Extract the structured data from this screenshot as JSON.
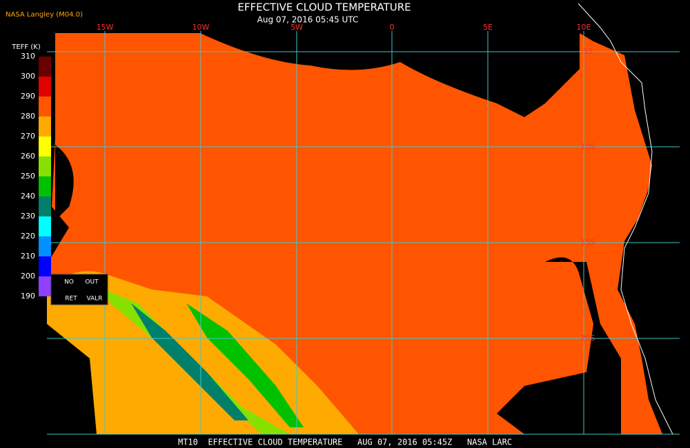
{
  "header": {
    "title": "EFFECTIVE CLOUD TEMPERATURE",
    "subtitle": "Aug 07, 2016 05:45 UTC",
    "source": "NASA Langley (M04.0)"
  },
  "grid": {
    "longitudes": [
      "15W",
      "10W",
      "5W",
      "0",
      "5E",
      "10E"
    ],
    "latitudes": [
      "5S",
      "10S",
      "15S",
      "20S"
    ]
  },
  "colorbar": {
    "label": "TEFF (K)",
    "ticks": [
      310,
      300,
      290,
      280,
      270,
      260,
      250,
      240,
      230,
      220,
      210,
      200,
      190
    ],
    "colors": [
      "#6b0000",
      "#e00000",
      "#ff5500",
      "#ffaa00",
      "#ffff00",
      "#88e000",
      "#00c000",
      "#00806a",
      "#00ffff",
      "#0090ff",
      "#0000ff",
      "#9040ff"
    ],
    "notes": [
      "NO",
      "OUT",
      "RET",
      "VALR"
    ]
  },
  "footer": "MT10  EFFECTIVE CLOUD TEMPERATURE   AUG 07, 2016 05:45Z   NASA LARC"
}
